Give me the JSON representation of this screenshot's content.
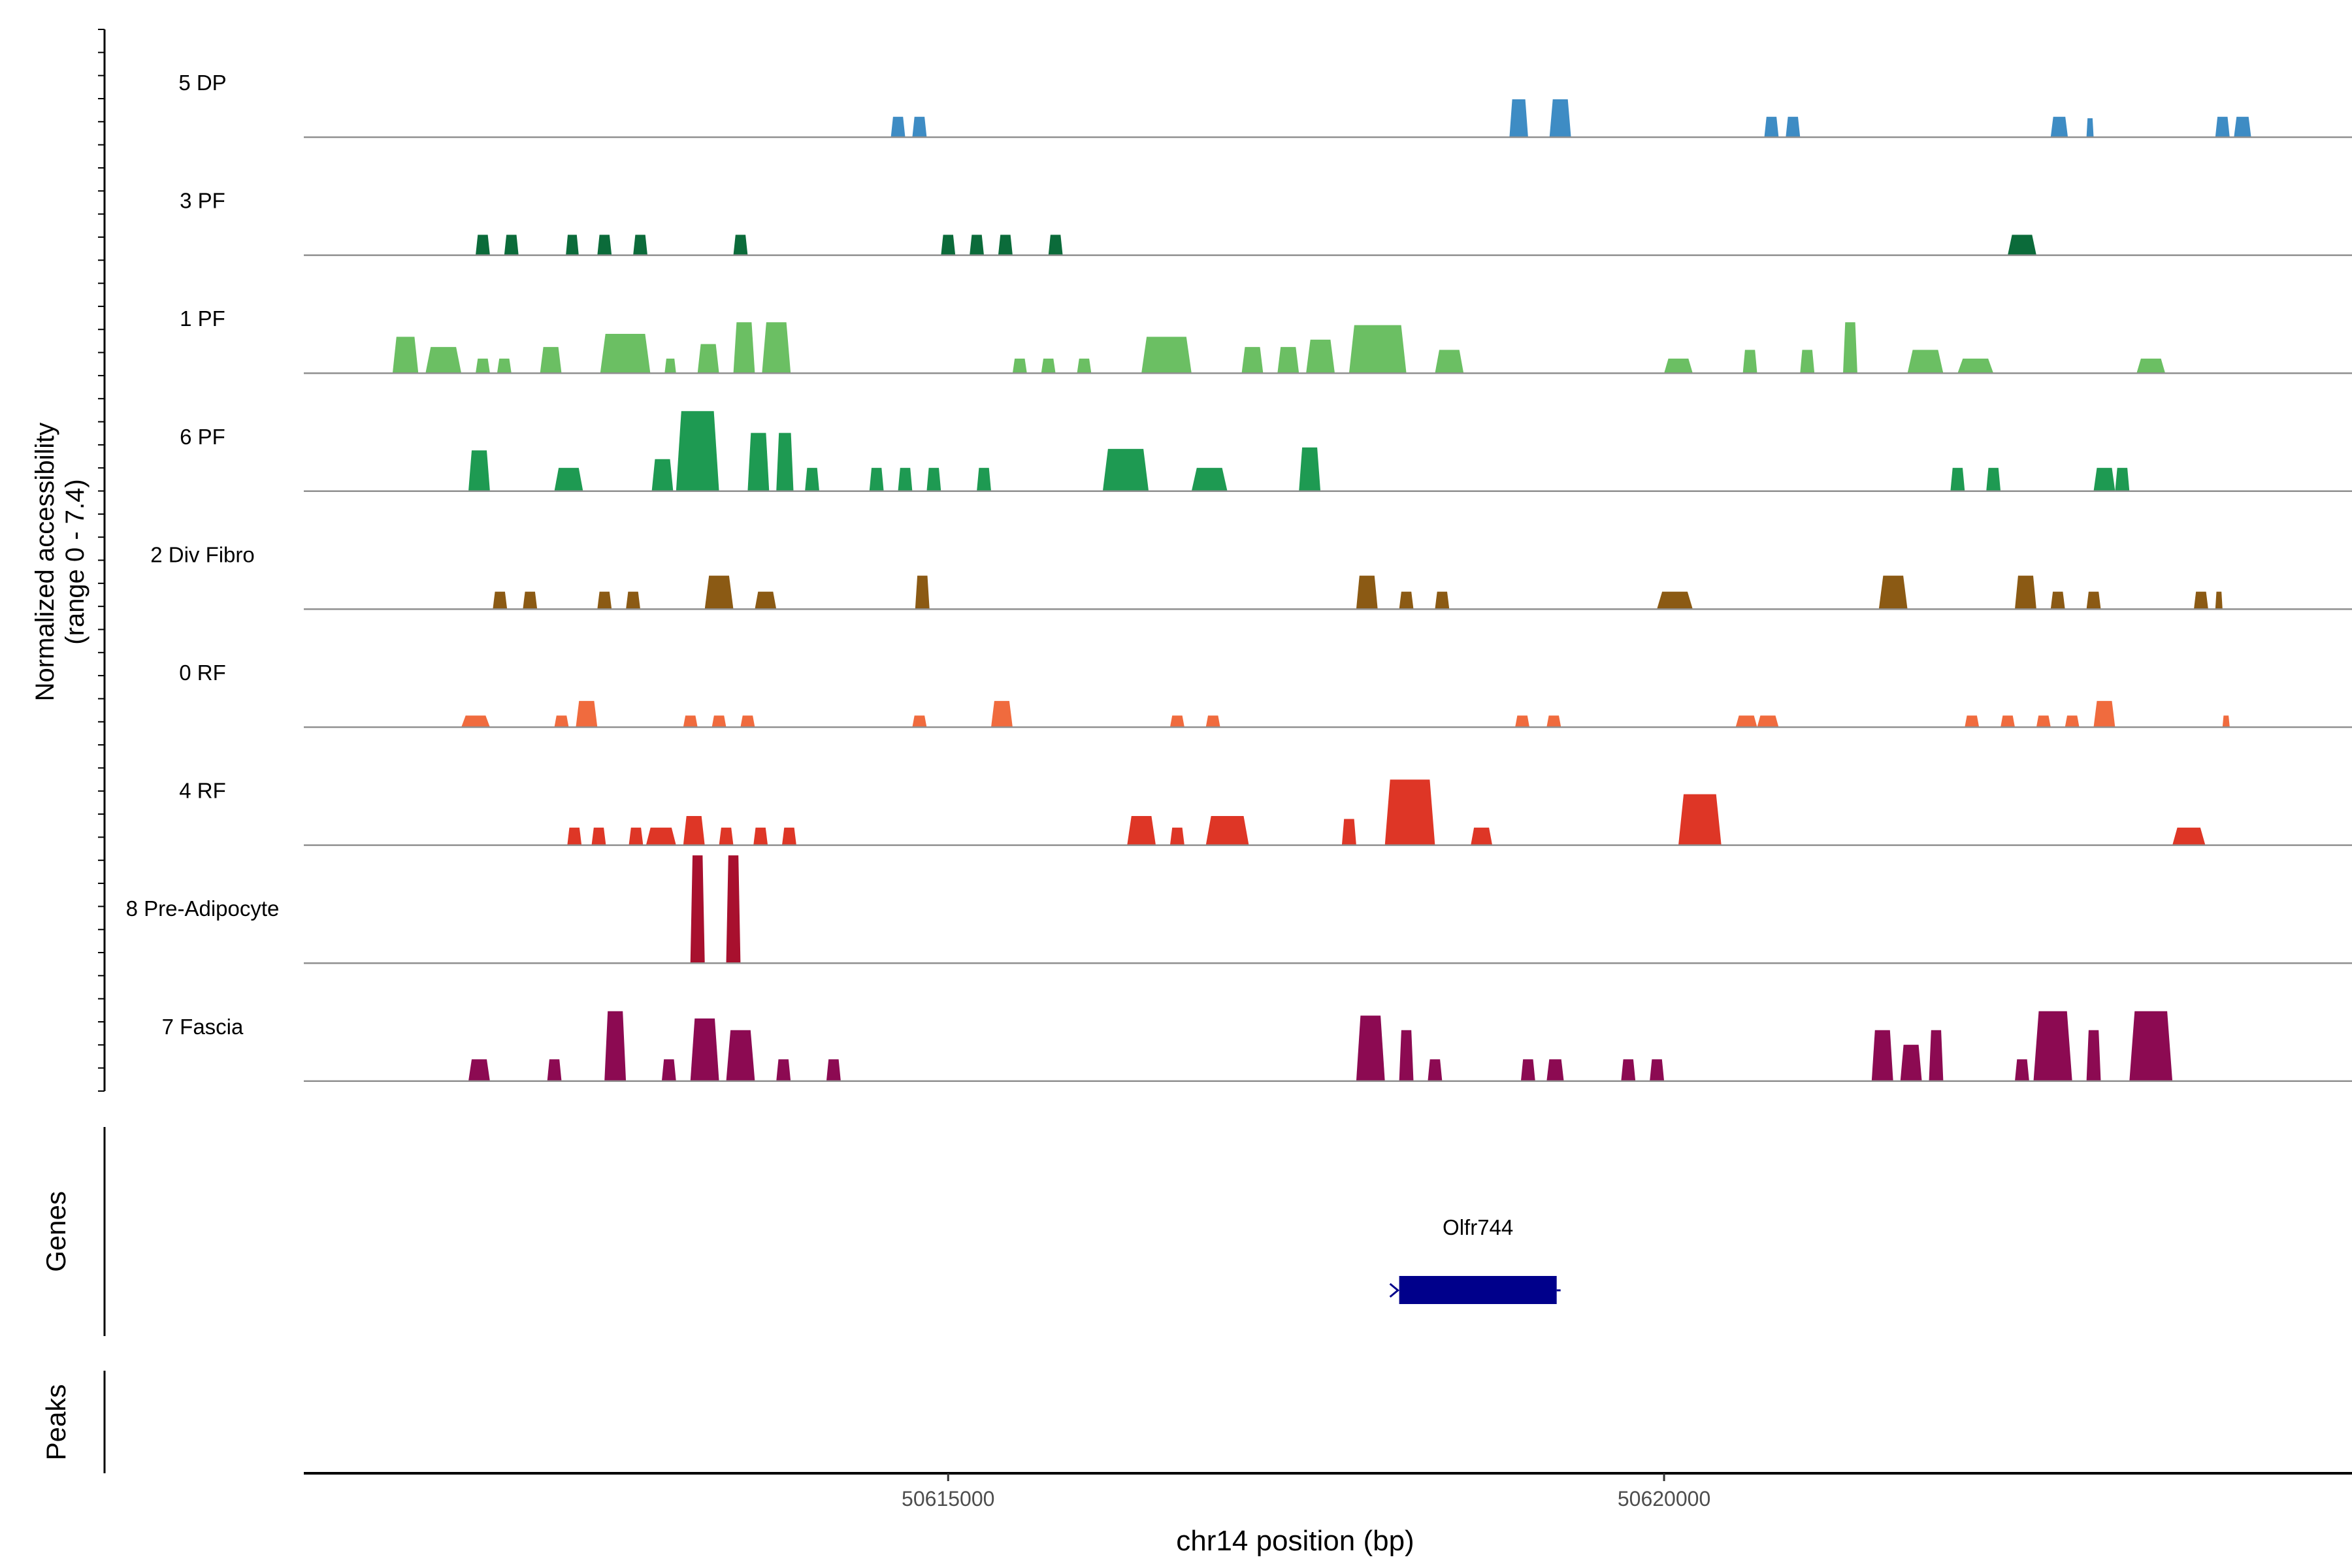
{
  "chart_data": {
    "type": "area",
    "title": "",
    "xlabel": "chr14 position (bp)",
    "ylabel": "Normalized accessibility\n(range 0 - 7.4)",
    "y_range": [
      0,
      7.4
    ],
    "xlim": [
      50610500,
      50624850
    ],
    "x_ticks": [
      {
        "value": 50615000,
        "label": "50615000"
      },
      {
        "value": 50620000,
        "label": "50620000"
      }
    ],
    "side_labels": {
      "genes": "Genes",
      "peaks": "Peaks"
    },
    "genes": [
      {
        "name": "Olfr744",
        "start": 50618150,
        "end": 50619250,
        "strand": "-",
        "color": "#00008B"
      }
    ],
    "peaks": [],
    "series": [
      {
        "name": "5 DP",
        "color": "#3E8CC4",
        "regions": [
          [
            50614600,
            50614700,
            1.4
          ],
          [
            50614750,
            50614850,
            1.4
          ],
          [
            50618920,
            50619050,
            2.6
          ],
          [
            50619200,
            50619350,
            2.6
          ],
          [
            50620700,
            50620800,
            1.4
          ],
          [
            50620850,
            50620950,
            1.4
          ],
          [
            50622700,
            50622820,
            1.4
          ],
          [
            50622950,
            50623000,
            1.3
          ],
          [
            50623850,
            50623950,
            1.4
          ],
          [
            50623980,
            50624100,
            1.4
          ]
        ]
      },
      {
        "name": "3 PF",
        "color": "#0B6B3A",
        "regions": [
          [
            50611700,
            50611800,
            1.4
          ],
          [
            50611900,
            50612000,
            1.4
          ],
          [
            50612330,
            50612420,
            1.4
          ],
          [
            50612550,
            50612650,
            1.4
          ],
          [
            50612800,
            50612900,
            1.4
          ],
          [
            50613500,
            50613600,
            1.4
          ],
          [
            50614950,
            50615050,
            1.4
          ],
          [
            50615150,
            50615250,
            1.4
          ],
          [
            50615350,
            50615450,
            1.4
          ],
          [
            50615700,
            50615800,
            1.4
          ],
          [
            50622400,
            50622600,
            1.4
          ]
        ]
      },
      {
        "name": "1 PF",
        "color": "#6BBF63",
        "regions": [
          [
            50611120,
            50611300,
            2.5
          ],
          [
            50611350,
            50611600,
            1.8
          ],
          [
            50611700,
            50611800,
            1.0
          ],
          [
            50611850,
            50611950,
            1.0
          ],
          [
            50612150,
            50612300,
            1.8
          ],
          [
            50612570,
            50612920,
            2.7
          ],
          [
            50613020,
            50613100,
            1.0
          ],
          [
            50613250,
            50613400,
            2.0
          ],
          [
            50613500,
            50613650,
            3.5
          ],
          [
            50613700,
            50613900,
            3.5
          ],
          [
            50615450,
            50615550,
            1.0
          ],
          [
            50615650,
            50615750,
            1.0
          ],
          [
            50615900,
            50616000,
            1.0
          ],
          [
            50616350,
            50616700,
            2.5
          ],
          [
            50617050,
            50617200,
            1.8
          ],
          [
            50617300,
            50617450,
            1.8
          ],
          [
            50617500,
            50617700,
            2.3
          ],
          [
            50617800,
            50618200,
            3.3
          ],
          [
            50618400,
            50618600,
            1.6
          ],
          [
            50620000,
            50620200,
            1.0
          ],
          [
            50620550,
            50620650,
            1.6
          ],
          [
            50620950,
            50621050,
            1.6
          ],
          [
            50621250,
            50621350,
            3.5
          ],
          [
            50621700,
            50621950,
            1.6
          ],
          [
            50622050,
            50622300,
            1.0
          ],
          [
            50623300,
            50623500,
            1.0
          ]
        ]
      },
      {
        "name": "6 PF",
        "color": "#1E9A52",
        "regions": [
          [
            50611650,
            50611800,
            2.8
          ],
          [
            50612250,
            50612450,
            1.6
          ],
          [
            50612930,
            50613080,
            2.2
          ],
          [
            50613100,
            50613400,
            5.5
          ],
          [
            50613600,
            50613750,
            4.0
          ],
          [
            50613800,
            50613920,
            4.0
          ],
          [
            50614000,
            50614100,
            1.6
          ],
          [
            50614450,
            50614550,
            1.6
          ],
          [
            50614650,
            50614750,
            1.6
          ],
          [
            50614850,
            50614950,
            1.6
          ],
          [
            50615200,
            50615300,
            1.6
          ],
          [
            50616080,
            50616400,
            2.9
          ],
          [
            50616700,
            50616950,
            1.6
          ],
          [
            50617450,
            50617600,
            3.0
          ],
          [
            50622000,
            50622100,
            1.6
          ],
          [
            50622250,
            50622350,
            1.6
          ],
          [
            50623000,
            50623150,
            1.6
          ],
          [
            50623150,
            50623250,
            1.6
          ]
        ]
      },
      {
        "name": "2 Div Fibro",
        "color": "#8B5A14",
        "regions": [
          [
            50611820,
            50611920,
            1.2
          ],
          [
            50612030,
            50612130,
            1.2
          ],
          [
            50612550,
            50612650,
            1.2
          ],
          [
            50612750,
            50612850,
            1.2
          ],
          [
            50613300,
            50613500,
            2.3
          ],
          [
            50613650,
            50613800,
            1.2
          ],
          [
            50614770,
            50614870,
            2.3
          ],
          [
            50617850,
            50618000,
            2.3
          ],
          [
            50618150,
            50618250,
            1.2
          ],
          [
            50618400,
            50618500,
            1.2
          ],
          [
            50619950,
            50620200,
            1.2
          ],
          [
            50621500,
            50621700,
            2.3
          ],
          [
            50622450,
            50622600,
            2.3
          ],
          [
            50622700,
            50622800,
            1.2
          ],
          [
            50622950,
            50623050,
            1.2
          ],
          [
            50623700,
            50623800,
            1.2
          ],
          [
            50623850,
            50623900,
            1.2
          ]
        ]
      },
      {
        "name": "0 RF",
        "color": "#F06B3E",
        "regions": [
          [
            50611600,
            50611800,
            0.8
          ],
          [
            50612250,
            50612350,
            0.8
          ],
          [
            50612400,
            50612550,
            1.8
          ],
          [
            50613150,
            50613250,
            0.8
          ],
          [
            50613350,
            50613450,
            0.8
          ],
          [
            50613550,
            50613650,
            0.8
          ],
          [
            50614750,
            50614850,
            0.8
          ],
          [
            50615300,
            50615450,
            1.8
          ],
          [
            50616550,
            50616650,
            0.8
          ],
          [
            50616800,
            50616900,
            0.8
          ],
          [
            50618960,
            50619060,
            0.8
          ],
          [
            50619180,
            50619280,
            0.8
          ],
          [
            50620500,
            50620650,
            0.8
          ],
          [
            50620650,
            50620800,
            0.8
          ],
          [
            50622100,
            50622200,
            0.8
          ],
          [
            50622350,
            50622450,
            0.8
          ],
          [
            50622600,
            50622700,
            0.8
          ],
          [
            50622800,
            50622900,
            0.8
          ],
          [
            50623000,
            50623150,
            1.8
          ],
          [
            50623900,
            50623950,
            0.8
          ]
        ]
      },
      {
        "name": "4 RF",
        "color": "#DE3626",
        "regions": [
          [
            50612340,
            50612440,
            1.2
          ],
          [
            50612510,
            50612610,
            1.2
          ],
          [
            50612770,
            50612870,
            1.2
          ],
          [
            50612890,
            50613100,
            1.2
          ],
          [
            50613150,
            50613300,
            2.0
          ],
          [
            50613400,
            50613500,
            1.2
          ],
          [
            50613640,
            50613740,
            1.2
          ],
          [
            50613840,
            50613940,
            1.2
          ],
          [
            50616250,
            50616450,
            2.0
          ],
          [
            50616550,
            50616650,
            1.2
          ],
          [
            50616800,
            50617100,
            2.0
          ],
          [
            50617750,
            50617850,
            1.8
          ],
          [
            50618050,
            50618400,
            4.5
          ],
          [
            50618650,
            50618800,
            1.2
          ],
          [
            50620100,
            50620400,
            3.5
          ],
          [
            50623550,
            50623780,
            1.2
          ]
        ]
      },
      {
        "name": "8 Pre-Adipocyte",
        "color": "#A8102E",
        "regions": [
          [
            50613200,
            50613300,
            7.4
          ],
          [
            50613450,
            50613550,
            7.4
          ]
        ]
      },
      {
        "name": "7 Fascia",
        "color": "#8C0A52",
        "regions": [
          [
            50611650,
            50611800,
            1.5
          ],
          [
            50612200,
            50612300,
            1.5
          ],
          [
            50612600,
            50612750,
            4.8
          ],
          [
            50613000,
            50613100,
            1.5
          ],
          [
            50613200,
            50613400,
            4.3
          ],
          [
            50613450,
            50613650,
            3.5
          ],
          [
            50613800,
            50613900,
            1.5
          ],
          [
            50614150,
            50614250,
            1.5
          ],
          [
            50617850,
            50618050,
            4.5
          ],
          [
            50618150,
            50618250,
            3.5
          ],
          [
            50618350,
            50618450,
            1.5
          ],
          [
            50619000,
            50619100,
            1.5
          ],
          [
            50619180,
            50619300,
            1.5
          ],
          [
            50619700,
            50619800,
            1.5
          ],
          [
            50619900,
            50620000,
            1.5
          ],
          [
            50621450,
            50621600,
            3.5
          ],
          [
            50621650,
            50621800,
            2.5
          ],
          [
            50621850,
            50621950,
            3.5
          ],
          [
            50622450,
            50622550,
            1.5
          ],
          [
            50622580,
            50622850,
            4.8
          ],
          [
            50622950,
            50623050,
            3.5
          ],
          [
            50623250,
            50623550,
            4.8
          ]
        ]
      }
    ]
  }
}
